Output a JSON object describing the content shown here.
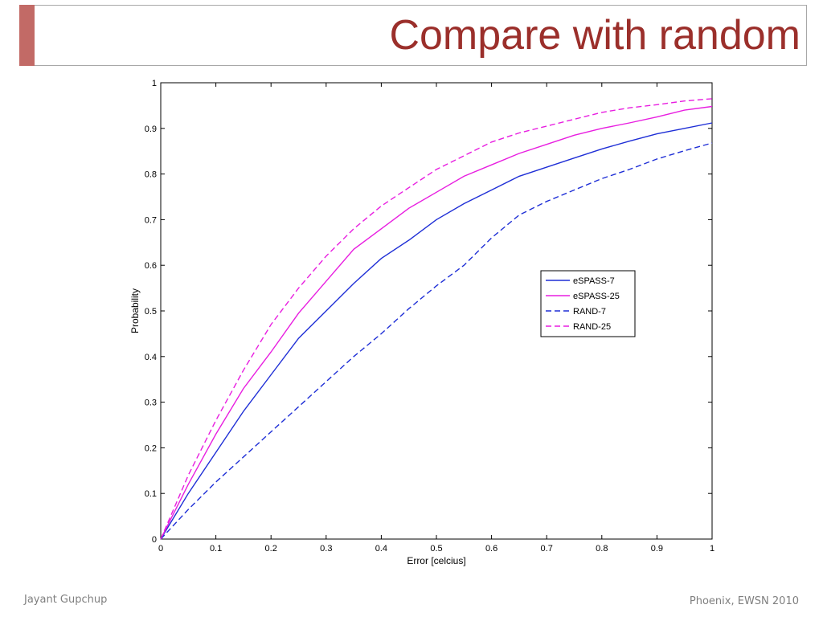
{
  "slide": {
    "title": "Compare with random",
    "footer_left": "Jayant Gupchup",
    "footer_right": "Phoenix, EWSN 2010"
  },
  "chart_data": {
    "type": "line",
    "xlabel": "Error [celcius]",
    "ylabel": "Probability",
    "xlim": [
      0,
      1
    ],
    "ylim": [
      0,
      1
    ],
    "xticks": [
      0,
      0.1,
      0.2,
      0.3,
      0.4,
      0.5,
      0.6,
      0.7,
      0.8,
      0.9,
      1
    ],
    "xtick_labels": [
      "0",
      "0.1",
      "0.2",
      "0.3",
      "0.4",
      "0.5",
      "0.6",
      "0.7",
      "0.8",
      "0.9",
      "1"
    ],
    "yticks": [
      0,
      0.1,
      0.2,
      0.3,
      0.4,
      0.5,
      0.6,
      0.7,
      0.8,
      0.9,
      1
    ],
    "ytick_labels": [
      "0",
      "0.1",
      "0.2",
      "0.3",
      "0.4",
      "0.5",
      "0.6",
      "0.7",
      "0.8",
      "0.9",
      "1"
    ],
    "grid": false,
    "legend_position": "right-middle",
    "x": [
      0,
      0.05,
      0.1,
      0.15,
      0.2,
      0.25,
      0.3,
      0.35,
      0.4,
      0.45,
      0.5,
      0.55,
      0.6,
      0.65,
      0.7,
      0.75,
      0.8,
      0.85,
      0.9,
      0.95,
      1
    ],
    "series": [
      {
        "name": "eSPASS-7",
        "color": "#1f2fd6",
        "dash": "solid",
        "values": [
          0,
          0.1,
          0.19,
          0.28,
          0.36,
          0.44,
          0.5,
          0.56,
          0.615,
          0.655,
          0.7,
          0.735,
          0.765,
          0.795,
          0.815,
          0.835,
          0.855,
          0.872,
          0.888,
          0.9,
          0.912
        ]
      },
      {
        "name": "eSPASS-25",
        "color": "#e81ee0",
        "dash": "solid",
        "values": [
          0,
          0.12,
          0.23,
          0.33,
          0.41,
          0.495,
          0.565,
          0.635,
          0.68,
          0.725,
          0.76,
          0.795,
          0.82,
          0.845,
          0.865,
          0.885,
          0.9,
          0.912,
          0.925,
          0.94,
          0.948
        ]
      },
      {
        "name": "RAND-7",
        "color": "#1f2fd6",
        "dash": "dashed",
        "values": [
          0,
          0.065,
          0.125,
          0.18,
          0.235,
          0.29,
          0.345,
          0.4,
          0.45,
          0.505,
          0.555,
          0.6,
          0.66,
          0.71,
          0.74,
          0.765,
          0.79,
          0.81,
          0.833,
          0.851,
          0.868
        ]
      },
      {
        "name": "RAND-25",
        "color": "#e81ee0",
        "dash": "dashed",
        "values": [
          0,
          0.14,
          0.26,
          0.37,
          0.47,
          0.55,
          0.62,
          0.68,
          0.73,
          0.77,
          0.81,
          0.84,
          0.87,
          0.89,
          0.905,
          0.92,
          0.935,
          0.945,
          0.952,
          0.96,
          0.965
        ]
      }
    ]
  }
}
